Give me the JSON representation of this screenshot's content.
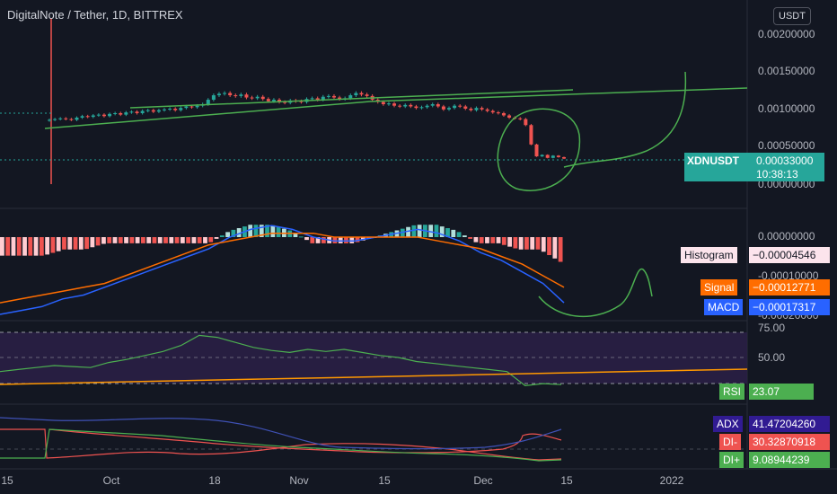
{
  "header": {
    "title": "DigitalNote / Tether, 1D, BITTREX",
    "unit": "USDT"
  },
  "price_axis": [
    "0.00200000",
    "0.00150000",
    "0.00100000",
    "0.00050000",
    "0.00000000"
  ],
  "macd_axis": [
    "0.00000000",
    "-0.00010000",
    "-0.00020000"
  ],
  "rsi_axis": [
    "75.00",
    "50.00"
  ],
  "x_axis": [
    "15",
    "Oct",
    "18",
    "Nov",
    "15",
    "Dec",
    "15",
    "2022"
  ],
  "price_tag": {
    "symbol": "XDNUSDT",
    "value": "0.00033000",
    "countdown": "10:38:13"
  },
  "macd_tags": {
    "histogram_label": "Histogram",
    "histogram_value": "−0.00004546",
    "signal_label": "Signal",
    "signal_value": "−0.00012771",
    "macd_label": "MACD",
    "macd_value": "−0.00017317"
  },
  "rsi_tag": {
    "label": "RSI",
    "value": "23.07"
  },
  "dmi_tags": {
    "adx_label": "ADX",
    "adx_value": "41.47204260",
    "dim_label": "DI-",
    "dim_value": "30.32870918",
    "dip_label": "DI+",
    "dip_value": "9.08944239"
  },
  "colors": {
    "background": "#131722",
    "up": "#26a69a",
    "down": "#ef5350",
    "drawing": "#4caf50",
    "macd": "#2962ff",
    "signal": "#ff6d00",
    "rsi": "#7e57c2",
    "adx": "#3f51b5",
    "di_minus": "#ef5350",
    "di_plus": "#4caf50"
  },
  "chart_data": {
    "type": "candlestick",
    "title": "DigitalNote / Tether, 1D, BITTREX",
    "ylim": [
      0.0,
      0.0021
    ],
    "last_price": 0.00033,
    "x_ticks": [
      "15",
      "Oct",
      "18",
      "Nov",
      "15",
      "Dec",
      "15",
      "2022"
    ],
    "close_series": [
      0.00085,
      0.00086,
      0.00087,
      0.00086,
      0.00085,
      0.00088,
      0.0009,
      0.00089,
      0.00091,
      0.00092,
      0.0009,
      0.00093,
      0.00094,
      0.00092,
      0.00095,
      0.00096,
      0.00094,
      0.00097,
      0.00098,
      0.00096,
      0.00098,
      0.00099,
      0.001,
      0.00098,
      0.00101,
      0.00103,
      0.00102,
      0.00104,
      0.00106,
      0.00112,
      0.00118,
      0.0012,
      0.00121,
      0.00118,
      0.00117,
      0.00119,
      0.00115,
      0.00114,
      0.00116,
      0.00113,
      0.0011,
      0.00112,
      0.00109,
      0.00108,
      0.00111,
      0.0011,
      0.00109,
      0.00113,
      0.00114,
      0.00112,
      0.00116,
      0.00117,
      0.00115,
      0.00113,
      0.00114,
      0.00118,
      0.00121,
      0.00119,
      0.00117,
      0.00112,
      0.00109,
      0.00106,
      0.00107,
      0.00104,
      0.00103,
      0.00105,
      0.00103,
      0.00101,
      0.00102,
      0.00104,
      0.00106,
      0.00103,
      0.00099,
      0.00101,
      0.00104,
      0.00103,
      0.001,
      0.00098,
      0.00101,
      0.00099,
      0.00097,
      0.00095,
      0.00094,
      0.00091,
      0.00088,
      0.00087,
      0.00086,
      0.00078,
      0.00052,
      0.00036,
      0.00038,
      0.00034,
      0.00037,
      0.00035,
      0.00033
    ],
    "macd_line": [
      -0.0002,
      -0.00019,
      -0.00018,
      -0.00016,
      -0.00015,
      -0.00013,
      -0.00011,
      -9e-05,
      -7e-05,
      -5e-05,
      -3e-05,
      0.0,
      2e-05,
      3e-05,
      2e-05,
      0.0,
      -1e-05,
      -1e-05,
      0.0,
      1e-05,
      2e-05,
      1e-05,
      -1e-05,
      -4e-05,
      -6e-05,
      -9e-05,
      -0.00012,
      -0.00017
    ],
    "signal_line": [
      -0.00017,
      -0.00016,
      -0.00015,
      -0.00014,
      -0.00013,
      -0.00012,
      -0.0001,
      -8e-05,
      -6e-05,
      -4e-05,
      -2e-05,
      -1e-05,
      0.0,
      1e-05,
      1e-05,
      1e-05,
      0.0,
      0.0,
      0.0,
      0.0,
      0.0,
      -1e-05,
      -2e-05,
      -3e-05,
      -5e-05,
      -7e-05,
      -0.0001,
      -0.00013
    ],
    "histogram_last": -4.546e-05,
    "rsi": [
      36,
      38,
      40,
      42,
      41,
      40,
      45,
      48,
      52,
      56,
      62,
      72,
      70,
      65,
      60,
      57,
      55,
      58,
      56,
      58,
      55,
      52,
      50,
      46,
      44,
      42,
      40,
      38,
      36,
      22,
      24,
      23
    ],
    "rsi_levels": [
      30,
      50,
      70
    ],
    "adx_last": 41.4720426,
    "di_minus_last": 30.32870918,
    "di_plus_last": 9.08944239
  }
}
